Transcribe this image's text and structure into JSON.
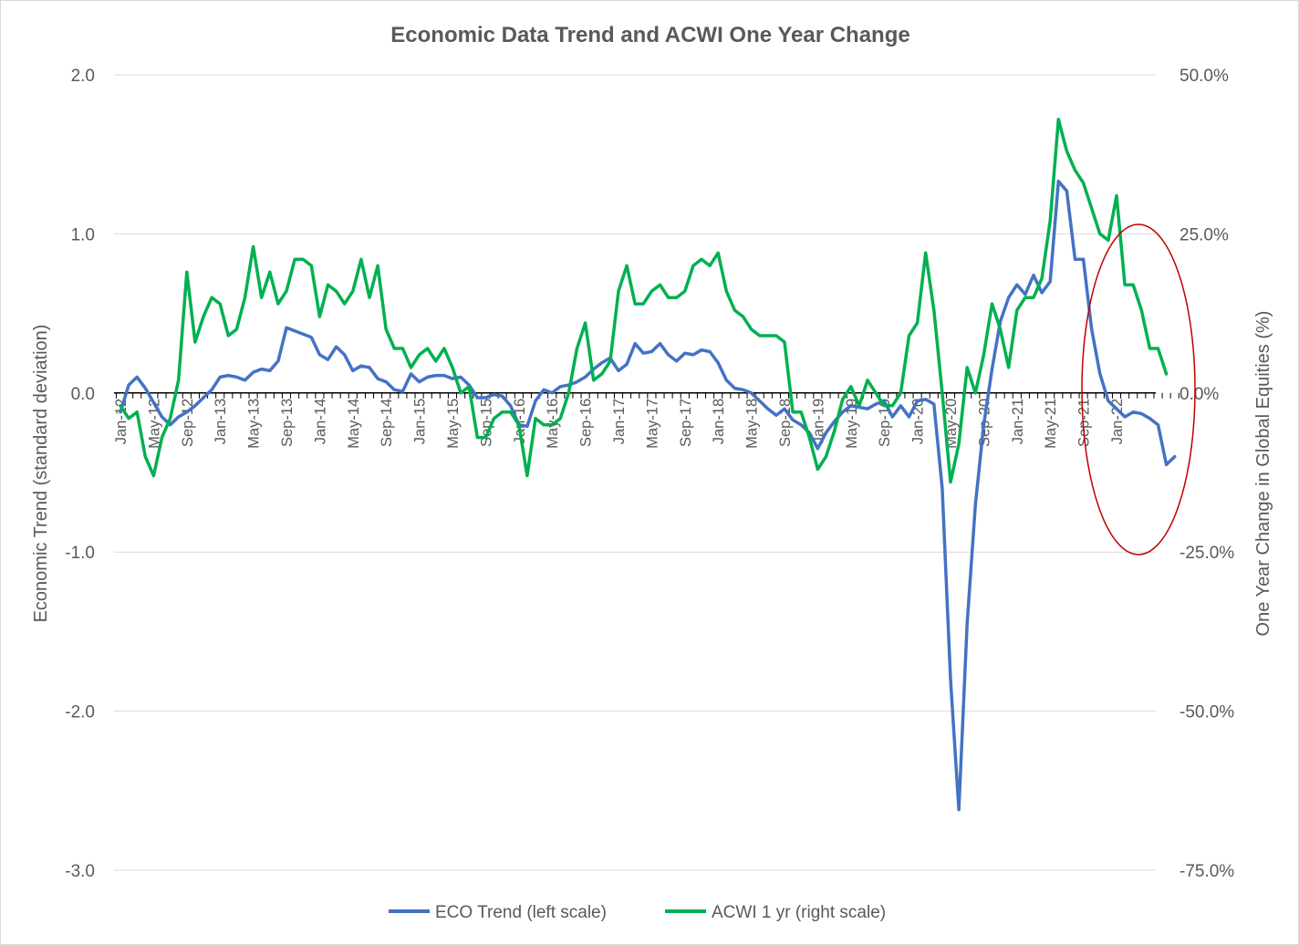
{
  "chart_data": {
    "type": "line",
    "title": "Economic Data Trend and ACWI One Year Change",
    "ylabel_left": "Economic Trend (standard deviation)",
    "ylabel_right": "One Year Change in Global Equities (%)",
    "ylim_left": [
      -3.0,
      2.0
    ],
    "ylim_right": [
      -75.0,
      50.0
    ],
    "yticks_left": [
      "2.0",
      "1.0",
      "0.0",
      "-1.0",
      "-2.0",
      "-3.0"
    ],
    "yticks_right": [
      "50.0%",
      "25.0%",
      "0.0%",
      "-25.0%",
      "-50.0%",
      "-75.0%"
    ],
    "x_tick_labels": [
      "Jan-12",
      "May-12",
      "Sep-12",
      "Jan-13",
      "May-13",
      "Sep-13",
      "Jan-14",
      "May-14",
      "Sep-14",
      "Jan-15",
      "May-15",
      "Sep-15",
      "Jan-16",
      "May-16",
      "Sep-16",
      "Jan-17",
      "May-17",
      "Sep-17",
      "Jan-18",
      "May-18",
      "Sep-18",
      "Jan-19",
      "May-19",
      "Sep-19",
      "Jan-20",
      "May-20",
      "Sep-20",
      "Jan-21",
      "May-21",
      "Sep-21",
      "Jan-22"
    ],
    "x_start": "Jan-12",
    "x_step": "1 month",
    "grid": "horizontal",
    "legend_position": "bottom",
    "series": [
      {
        "name": "ECO Trend (left scale)",
        "axis": "left",
        "color": "#4472c4",
        "values": [
          -0.12,
          0.05,
          0.1,
          0.03,
          -0.06,
          -0.15,
          -0.2,
          -0.15,
          -0.12,
          -0.08,
          -0.03,
          0.02,
          0.1,
          0.11,
          0.1,
          0.08,
          0.13,
          0.15,
          0.14,
          0.2,
          0.41,
          0.39,
          0.37,
          0.35,
          0.24,
          0.21,
          0.29,
          0.24,
          0.14,
          0.17,
          0.16,
          0.09,
          0.07,
          0.02,
          0.01,
          0.12,
          0.07,
          0.1,
          0.11,
          0.11,
          0.09,
          0.1,
          0.05,
          -0.03,
          -0.03,
          -0.01,
          -0.02,
          -0.08,
          -0.2,
          -0.21,
          -0.05,
          0.02,
          0.0,
          0.04,
          0.05,
          0.07,
          0.1,
          0.15,
          0.19,
          0.22,
          0.14,
          0.18,
          0.31,
          0.25,
          0.26,
          0.31,
          0.24,
          0.2,
          0.25,
          0.24,
          0.27,
          0.26,
          0.19,
          0.08,
          0.03,
          0.02,
          0.0,
          -0.05,
          -0.1,
          -0.14,
          -0.1,
          -0.17,
          -0.2,
          -0.25,
          -0.35,
          -0.25,
          -0.18,
          -0.12,
          -0.08,
          -0.09,
          -0.1,
          -0.07,
          -0.05,
          -0.15,
          -0.08,
          -0.15,
          -0.05,
          -0.04,
          -0.07,
          -0.6,
          -1.8,
          -2.62,
          -1.45,
          -0.7,
          -0.2,
          0.15,
          0.45,
          0.6,
          0.68,
          0.62,
          0.74,
          0.63,
          0.7,
          1.33,
          1.27,
          0.84,
          0.84,
          0.4,
          0.12,
          -0.05,
          -0.1,
          -0.15,
          -0.12,
          -0.13,
          -0.16,
          -0.2,
          -0.45,
          -0.4
        ]
      },
      {
        "name": "ACWI 1 yr (right scale)",
        "axis": "right",
        "color": "#00b050",
        "values": [
          -2,
          -4,
          -3,
          -10,
          -13,
          -7,
          -4,
          2,
          19,
          8,
          12,
          15,
          14,
          9,
          10,
          15,
          23,
          15,
          19,
          14,
          16,
          21,
          21,
          20,
          12,
          17,
          16,
          14,
          16,
          21,
          15,
          20,
          10,
          7,
          7,
          4,
          6,
          7,
          5,
          7,
          4,
          0,
          1,
          -7,
          -7,
          -4,
          -3,
          -3,
          -5,
          -13,
          -4,
          -5,
          -5,
          -4,
          0,
          7,
          11,
          2,
          3,
          5,
          16,
          20,
          14,
          14,
          16,
          17,
          15,
          15,
          16,
          20,
          21,
          20,
          22,
          16,
          13,
          12,
          10,
          9,
          9,
          9,
          8,
          -3,
          -3,
          -7,
          -12,
          -10,
          -6,
          -1,
          1,
          -2,
          2,
          0,
          -2,
          -2,
          0,
          9,
          11,
          22,
          13,
          0,
          -14,
          -8,
          4,
          0,
          6,
          14,
          10,
          4,
          13,
          15,
          15,
          18,
          27,
          43,
          38,
          35,
          33,
          29,
          25,
          24,
          31,
          17,
          17,
          13,
          7,
          7,
          3
        ]
      }
    ],
    "annotations": [
      {
        "type": "ellipse",
        "color": "#c00000",
        "description": "circle highlighting Sep-21 to Apr-22 region"
      }
    ]
  }
}
